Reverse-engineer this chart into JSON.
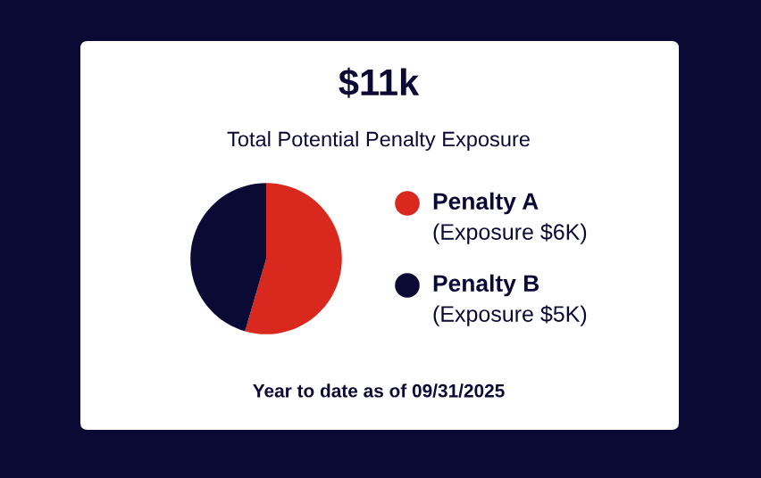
{
  "chart_data": {
    "type": "pie",
    "title": "$11k",
    "subtitle": "Total Potential Penalty Exposure",
    "categories": [
      "Penalty A",
      "Penalty B"
    ],
    "values": [
      54.5,
      45.5
    ],
    "colors": [
      "#d9281e",
      "#0b0a35"
    ],
    "value_labels": [
      "(Exposure $6K)",
      "(Exposure $5K)"
    ],
    "legend": "right",
    "annotations": [
      "Year to date as of 09/31/2025"
    ]
  }
}
